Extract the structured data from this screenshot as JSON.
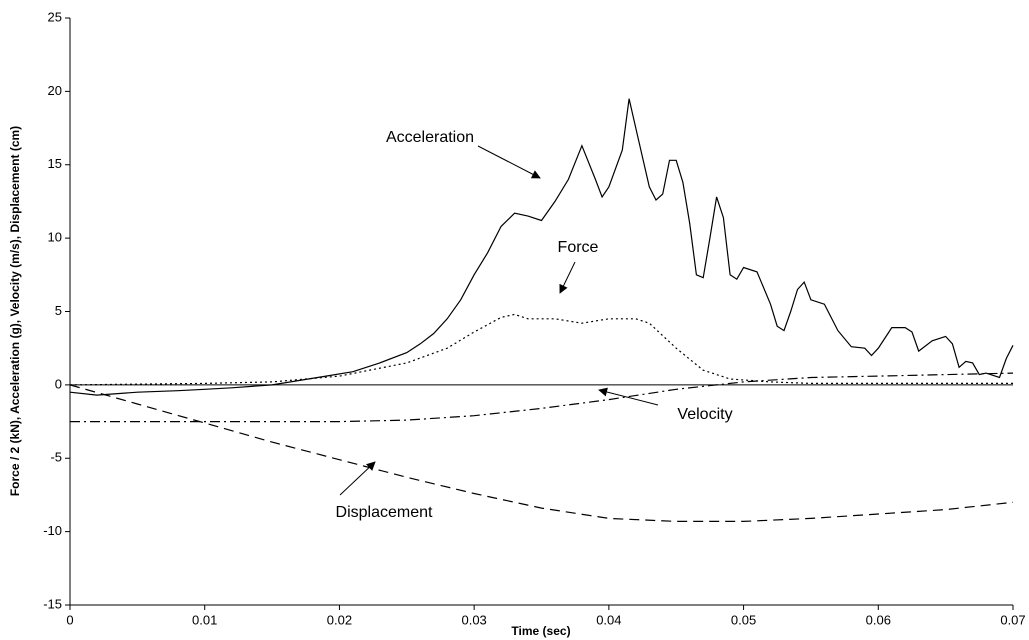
{
  "chart_data": {
    "type": "line",
    "xlabel": "Time (sec)",
    "ylabel": "Force / 2 (kN), Acceleration (g), Velocity (m/s), Displacement (cm)",
    "xlim": [
      0,
      0.07
    ],
    "ylim": [
      -15,
      25
    ],
    "xticks": [
      0,
      0.01,
      0.02,
      0.03,
      0.04,
      0.05,
      0.06,
      0.07
    ],
    "yticks": [
      -15,
      -10,
      -5,
      0,
      5,
      10,
      15,
      20,
      25
    ],
    "grid": false,
    "series": [
      {
        "name": "Acceleration",
        "color": "#000000",
        "line_style": "solid",
        "x": [
          0,
          0.002,
          0.005,
          0.008,
          0.01,
          0.012,
          0.015,
          0.017,
          0.019,
          0.021,
          0.023,
          0.025,
          0.026,
          0.027,
          0.028,
          0.029,
          0.03,
          0.031,
          0.032,
          0.033,
          0.034,
          0.035,
          0.036,
          0.037,
          0.038,
          0.039,
          0.0395,
          0.04,
          0.041,
          0.0415,
          0.042,
          0.043,
          0.0435,
          0.044,
          0.0445,
          0.045,
          0.0455,
          0.046,
          0.0465,
          0.047,
          0.0475,
          0.048,
          0.0485,
          0.049,
          0.0495,
          0.05,
          0.051,
          0.052,
          0.0525,
          0.053,
          0.0535,
          0.054,
          0.0545,
          0.055,
          0.056,
          0.057,
          0.058,
          0.059,
          0.0595,
          0.06,
          0.061,
          0.062,
          0.0625,
          0.063,
          0.064,
          0.065,
          0.0655,
          0.066,
          0.0665,
          0.067,
          0.0675,
          0.068,
          0.069,
          0.0695,
          0.07
        ],
        "values": [
          -0.5,
          -0.7,
          -0.5,
          -0.4,
          -0.3,
          -0.2,
          0,
          0.3,
          0.6,
          0.9,
          1.5,
          2.2,
          2.8,
          3.5,
          4.5,
          5.8,
          7.5,
          9,
          10.8,
          11.7,
          11.5,
          11.2,
          12.5,
          14,
          16.3,
          14,
          12.8,
          13.5,
          16,
          19.5,
          17.5,
          13.5,
          12.6,
          13,
          15.3,
          15.3,
          13.8,
          11,
          7.5,
          7.3,
          10,
          12.8,
          11.4,
          7.5,
          7.2,
          8,
          7.7,
          5.5,
          4,
          3.7,
          5,
          6.5,
          7,
          5.8,
          5.5,
          3.7,
          2.6,
          2.5,
          2,
          2.5,
          3.9,
          3.9,
          3.6,
          2.3,
          3,
          3.3,
          2.8,
          1.2,
          1.6,
          1.5,
          0.7,
          0.8,
          0.5,
          1.8,
          2.7
        ]
      },
      {
        "name": "Force",
        "color": "#000000",
        "line_style": "dotted",
        "x": [
          0,
          0.01,
          0.015,
          0.02,
          0.025,
          0.028,
          0.03,
          0.032,
          0.033,
          0.034,
          0.036,
          0.038,
          0.04,
          0.042,
          0.043,
          0.045,
          0.047,
          0.049,
          0.052,
          0.055,
          0.07
        ],
        "values": [
          0,
          0.1,
          0.2,
          0.6,
          1.5,
          2.5,
          3.6,
          4.6,
          4.8,
          4.5,
          4.5,
          4.2,
          4.5,
          4.5,
          4.2,
          2.5,
          1,
          0.4,
          0.2,
          0.1,
          0.1
        ]
      },
      {
        "name": "Velocity",
        "color": "#000000",
        "line_style": "dashdot",
        "x": [
          0,
          0.02,
          0.025,
          0.03,
          0.035,
          0.04,
          0.045,
          0.05,
          0.055,
          0.06,
          0.065,
          0.07
        ],
        "values": [
          -2.5,
          -2.5,
          -2.4,
          -2.1,
          -1.6,
          -1,
          -0.3,
          0.2,
          0.5,
          0.6,
          0.7,
          0.8
        ]
      },
      {
        "name": "Displacement",
        "color": "#000000",
        "line_style": "dashed",
        "x": [
          0,
          0.005,
          0.01,
          0.015,
          0.02,
          0.025,
          0.03,
          0.035,
          0.04,
          0.045,
          0.05,
          0.055,
          0.06,
          0.065,
          0.07
        ],
        "values": [
          0,
          -1.3,
          -2.6,
          -3.9,
          -5.1,
          -6.3,
          -7.4,
          -8.4,
          -9.1,
          -9.3,
          -9.3,
          -9.1,
          -8.8,
          -8.5,
          -8.0
        ]
      }
    ]
  }
}
